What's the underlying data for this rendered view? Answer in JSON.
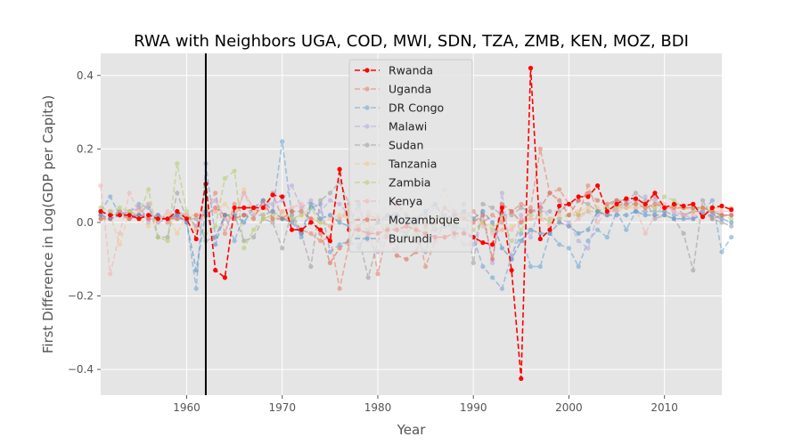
{
  "chart_data": {
    "type": "line",
    "title": "RWA with Neighbors UGA, COD, MWI, SDN, TZA, ZMB, KEN, MOZ, BDI",
    "xlabel": "Year",
    "ylabel": "First Difference in Log(GDP per Capita)",
    "xlim": [
      1951,
      2016
    ],
    "ylim": [
      -0.47,
      0.46
    ],
    "xticks": [
      1960,
      1970,
      1980,
      1990,
      2000,
      2010
    ],
    "yticks": [
      -0.4,
      -0.2,
      0.0,
      0.2,
      0.4
    ],
    "xtick_labels": [
      "1960",
      "1970",
      "1980",
      "1990",
      "2000",
      "2010"
    ],
    "ytick_labels": [
      "−0.4",
      "−0.2",
      "0.0",
      "0.2",
      "0.4"
    ],
    "grid": true,
    "legend_position": "top-center",
    "vline_x": 1962,
    "series": [
      {
        "name": "Rwanda",
        "color": "#ff0000",
        "alpha": 1.0,
        "x_start": 1951,
        "values": [
          0.03,
          0.02,
          0.02,
          0.02,
          0.01,
          0.02,
          0.01,
          0.01,
          0.03,
          0.01,
          -0.045,
          0.105,
          -0.13,
          -0.15,
          0.04,
          0.04,
          0.04,
          0.04,
          0.075,
          0.07,
          -0.02,
          -0.02,
          0.0,
          -0.02,
          -0.05,
          0.145,
          -0.02,
          -0.02,
          -0.03,
          -0.03,
          -0.02,
          -0.02,
          -0.01,
          -0.02,
          -0.03,
          -0.04,
          -0.04,
          -0.03,
          -0.03,
          -0.04,
          -0.055,
          -0.06,
          0.04,
          -0.13,
          -0.425,
          0.42,
          -0.045,
          -0.02,
          0.045,
          0.05,
          0.07,
          0.07,
          0.1,
          0.03,
          0.05,
          0.065,
          0.065,
          0.05,
          0.08,
          0.04,
          0.05,
          0.045,
          0.05,
          0.015,
          0.04,
          0.045,
          0.035
        ]
      },
      {
        "name": "Uganda",
        "color": "#e8826c",
        "alpha": 0.6,
        "x_start": 1951,
        "values": [
          0.02,
          0.01,
          0.03,
          0.02,
          0.04,
          0.01,
          0.02,
          0.0,
          0.02,
          0.02,
          -0.01,
          0.03,
          0.08,
          -0.03,
          0.05,
          0.02,
          0.04,
          0.02,
          0.08,
          0.01,
          0.01,
          -0.02,
          -0.03,
          -0.05,
          -0.04,
          -0.18,
          -0.06,
          0.01,
          0.01,
          -0.14,
          -0.02,
          0.05,
          0.02,
          -0.01,
          -0.12,
          -0.05,
          0.0,
          0.03,
          0.02,
          0.03,
          0.0,
          0.02,
          0.0,
          0.03,
          0.05,
          0.04,
          0.2,
          0.08,
          0.09,
          0.05,
          0.02,
          0.1,
          0.03,
          0.02,
          0.04,
          0.06,
          0.06,
          0.05,
          0.07,
          0.03,
          0.05,
          0.02,
          0.03,
          0.03,
          0.01,
          0.02,
          0.02
        ]
      },
      {
        "name": "DR Congo",
        "color": "#6ea6d6",
        "alpha": 0.6,
        "x_start": 1951,
        "values": [
          0.03,
          0.07,
          0.02,
          0.03,
          0.05,
          0.04,
          0.0,
          0.01,
          0.02,
          0.0,
          -0.18,
          0.16,
          -0.04,
          0.02,
          -0.05,
          0.02,
          0.02,
          0.02,
          0.03,
          0.22,
          0.02,
          -0.04,
          0.04,
          0.05,
          -0.08,
          -0.06,
          -0.05,
          -0.07,
          -0.02,
          0.0,
          0.01,
          -0.02,
          -0.03,
          0.0,
          0.02,
          -0.02,
          -0.01,
          -0.01,
          -0.02,
          -0.04,
          -0.12,
          -0.15,
          -0.18,
          -0.09,
          -0.03,
          -0.12,
          -0.12,
          -0.03,
          -0.06,
          -0.07,
          -0.12,
          -0.05,
          -0.02,
          -0.04,
          0.03,
          -0.02,
          0.03,
          0.03,
          0.03,
          0.03,
          0.02,
          0.02,
          0.03,
          0.03,
          0.06,
          -0.08,
          -0.04
        ]
      },
      {
        "name": "Malawi",
        "color": "#b8a9e0",
        "alpha": 0.6,
        "x_start": 1951,
        "values": [
          0.02,
          0.03,
          0.02,
          0.03,
          0.04,
          0.0,
          0.02,
          0.01,
          0.03,
          0.02,
          -0.01,
          0.04,
          0.06,
          0.01,
          0.01,
          0.08,
          0.04,
          0.05,
          0.05,
          0.06,
          0.1,
          0.04,
          0.06,
          0.03,
          0.06,
          0.05,
          0.02,
          -0.06,
          -0.05,
          -0.08,
          -0.02,
          -0.07,
          -0.02,
          0.0,
          0.01,
          -0.02,
          -0.01,
          -0.02,
          -0.06,
          -0.06,
          0.02,
          -0.11,
          0.08,
          -0.1,
          0.02,
          -0.04,
          0.05,
          0.01,
          0.01,
          0.0,
          -0.05,
          -0.07,
          0.02,
          0.03,
          0.04,
          0.05,
          0.06,
          0.07,
          0.06,
          0.04,
          0.03,
          0.02,
          0.01,
          0.03,
          0.03,
          0.02,
          0.02
        ]
      },
      {
        "name": "Sudan",
        "color": "#a0a0a0",
        "alpha": 0.6,
        "x_start": 1951,
        "values": [
          0.01,
          0.02,
          0.03,
          0.01,
          0.02,
          0.05,
          -0.04,
          -0.04,
          0.08,
          0.01,
          0.01,
          -0.05,
          -0.04,
          0.02,
          0.02,
          -0.05,
          -0.04,
          0.01,
          0.0,
          -0.07,
          0.03,
          -0.03,
          -0.12,
          0.06,
          0.08,
          0.11,
          0.05,
          -0.04,
          -0.15,
          -0.05,
          -0.03,
          0.02,
          -0.04,
          -0.05,
          -0.08,
          0.01,
          0.02,
          -0.04,
          0.05,
          -0.11,
          0.05,
          0.04,
          0.02,
          0.02,
          0.04,
          0.03,
          0.03,
          0.03,
          0.03,
          0.05,
          0.06,
          0.05,
          0.03,
          0.04,
          0.06,
          0.06,
          0.08,
          0.06,
          0.01,
          0.02,
          0.01,
          -0.03,
          -0.13,
          0.06,
          0.01,
          0.0,
          -0.01
        ]
      },
      {
        "name": "Tanzania",
        "color": "#f5c98a",
        "alpha": 0.6,
        "x_start": 1951,
        "values": [
          0.01,
          0.02,
          -0.06,
          0.03,
          0.01,
          -0.01,
          0.01,
          0.02,
          -0.03,
          0.02,
          0.02,
          0.04,
          0.03,
          0.05,
          0.02,
          0.09,
          0.03,
          0.02,
          0.01,
          0.02,
          0.01,
          0.02,
          0.01,
          0.0,
          0.01,
          0.02,
          0.01,
          -0.02,
          -0.01,
          -0.02,
          -0.03,
          -0.01,
          -0.02,
          -0.01,
          0.0,
          0.01,
          0.01,
          0.01,
          0.02,
          0.01,
          0.0,
          -0.01,
          -0.02,
          -0.01,
          0.0,
          0.01,
          0.01,
          0.01,
          0.02,
          0.02,
          0.03,
          0.04,
          0.04,
          0.04,
          0.04,
          0.04,
          0.04,
          0.04,
          0.04,
          0.04,
          0.04,
          0.04,
          0.03,
          0.04,
          0.04,
          0.04,
          0.04
        ]
      },
      {
        "name": "Zambia",
        "color": "#b3cf72",
        "alpha": 0.6,
        "x_start": 1951,
        "values": [
          0.04,
          0.03,
          0.04,
          0.03,
          0.02,
          0.09,
          -0.04,
          -0.05,
          0.16,
          0.03,
          -0.02,
          -0.03,
          -0.01,
          0.12,
          0.14,
          -0.07,
          -0.02,
          0.01,
          0.02,
          0.03,
          0.01,
          0.02,
          0.04,
          0.0,
          -0.01,
          0.01,
          0.03,
          -0.04,
          -0.02,
          0.0,
          -0.01,
          -0.02,
          -0.04,
          -0.03,
          -0.02,
          -0.01,
          0.0,
          0.01,
          -0.03,
          -0.02,
          0.0,
          -0.02,
          0.01,
          -0.05,
          -0.02,
          0.02,
          0.02,
          0.0,
          0.01,
          0.02,
          0.02,
          0.03,
          0.03,
          0.04,
          0.04,
          0.04,
          0.05,
          0.05,
          0.04,
          0.07,
          0.06,
          0.04,
          0.04,
          0.04,
          0.03,
          0.02,
          0.01
        ]
      },
      {
        "name": "Kenya",
        "color": "#f7b2b2",
        "alpha": 0.6,
        "x_start": 1951,
        "values": [
          0.1,
          -0.14,
          -0.03,
          0.08,
          0.03,
          0.05,
          0.0,
          0.03,
          0.01,
          0.02,
          -0.02,
          0.02,
          0.03,
          0.01,
          0.01,
          0.08,
          0.02,
          0.04,
          0.03,
          0.03,
          0.04,
          0.05,
          0.01,
          0.01,
          -0.01,
          0.01,
          0.04,
          0.03,
          0.03,
          0.02,
          0.01,
          -0.01,
          -0.01,
          -0.02,
          0.02,
          0.04,
          0.09,
          0.02,
          0.02,
          0.01,
          -0.01,
          -0.03,
          -0.02,
          -0.02,
          0.01,
          0.01,
          0.01,
          -0.01,
          0.0,
          -0.01,
          0.01,
          0.03,
          0.0,
          0.03,
          0.03,
          0.04,
          0.04,
          -0.03,
          0.02,
          0.05,
          0.03,
          0.02,
          0.02,
          0.02,
          0.03,
          0.03,
          0.03
        ]
      },
      {
        "name": "Mozambique",
        "color": "#e06a55",
        "alpha": 0.6,
        "x_start": 1951,
        "values": [
          0.01,
          0.01,
          0.02,
          0.01,
          0.02,
          0.01,
          0.01,
          0.01,
          0.01,
          0.01,
          0.02,
          0.02,
          0.04,
          0.02,
          0.01,
          0.02,
          0.01,
          0.06,
          0.01,
          0.01,
          0.03,
          0.03,
          0.01,
          -0.03,
          -0.11,
          -0.07,
          -0.05,
          -0.01,
          0.02,
          0.01,
          -0.04,
          -0.09,
          -0.1,
          -0.08,
          -0.01,
          0.0,
          0.04,
          0.02,
          0.01,
          0.0,
          0.02,
          -0.1,
          0.05,
          0.03,
          0.0,
          0.03,
          0.04,
          0.08,
          0.06,
          0.02,
          0.06,
          0.08,
          0.06,
          0.05,
          0.06,
          0.05,
          0.05,
          0.04,
          0.05,
          0.04,
          0.04,
          0.04,
          0.04,
          0.04,
          0.03,
          0.02,
          0.02
        ]
      },
      {
        "name": "Burundi",
        "color": "#5b93c7",
        "alpha": 0.6,
        "x_start": 1951,
        "values": [
          0.02,
          0.01,
          0.02,
          0.02,
          0.02,
          0.02,
          0.02,
          0.01,
          0.02,
          0.0,
          -0.13,
          0.03,
          -0.06,
          0.02,
          0.02,
          0.0,
          0.04,
          0.06,
          0.03,
          0.01,
          0.0,
          -0.03,
          0.05,
          0.01,
          0.02,
          0.0,
          -0.01,
          0.05,
          -0.04,
          0.0,
          0.02,
          0.02,
          0.01,
          0.01,
          0.03,
          0.05,
          0.01,
          0.02,
          0.03,
          0.01,
          0.03,
          0.0,
          -0.07,
          -0.1,
          -0.05,
          -0.02,
          -0.03,
          -0.03,
          0.0,
          -0.01,
          -0.03,
          -0.02,
          0.03,
          0.02,
          0.02,
          0.02,
          0.03,
          0.02,
          0.02,
          0.02,
          0.01,
          0.01,
          0.01,
          0.02,
          0.02,
          0.01,
          0.0
        ]
      }
    ]
  }
}
